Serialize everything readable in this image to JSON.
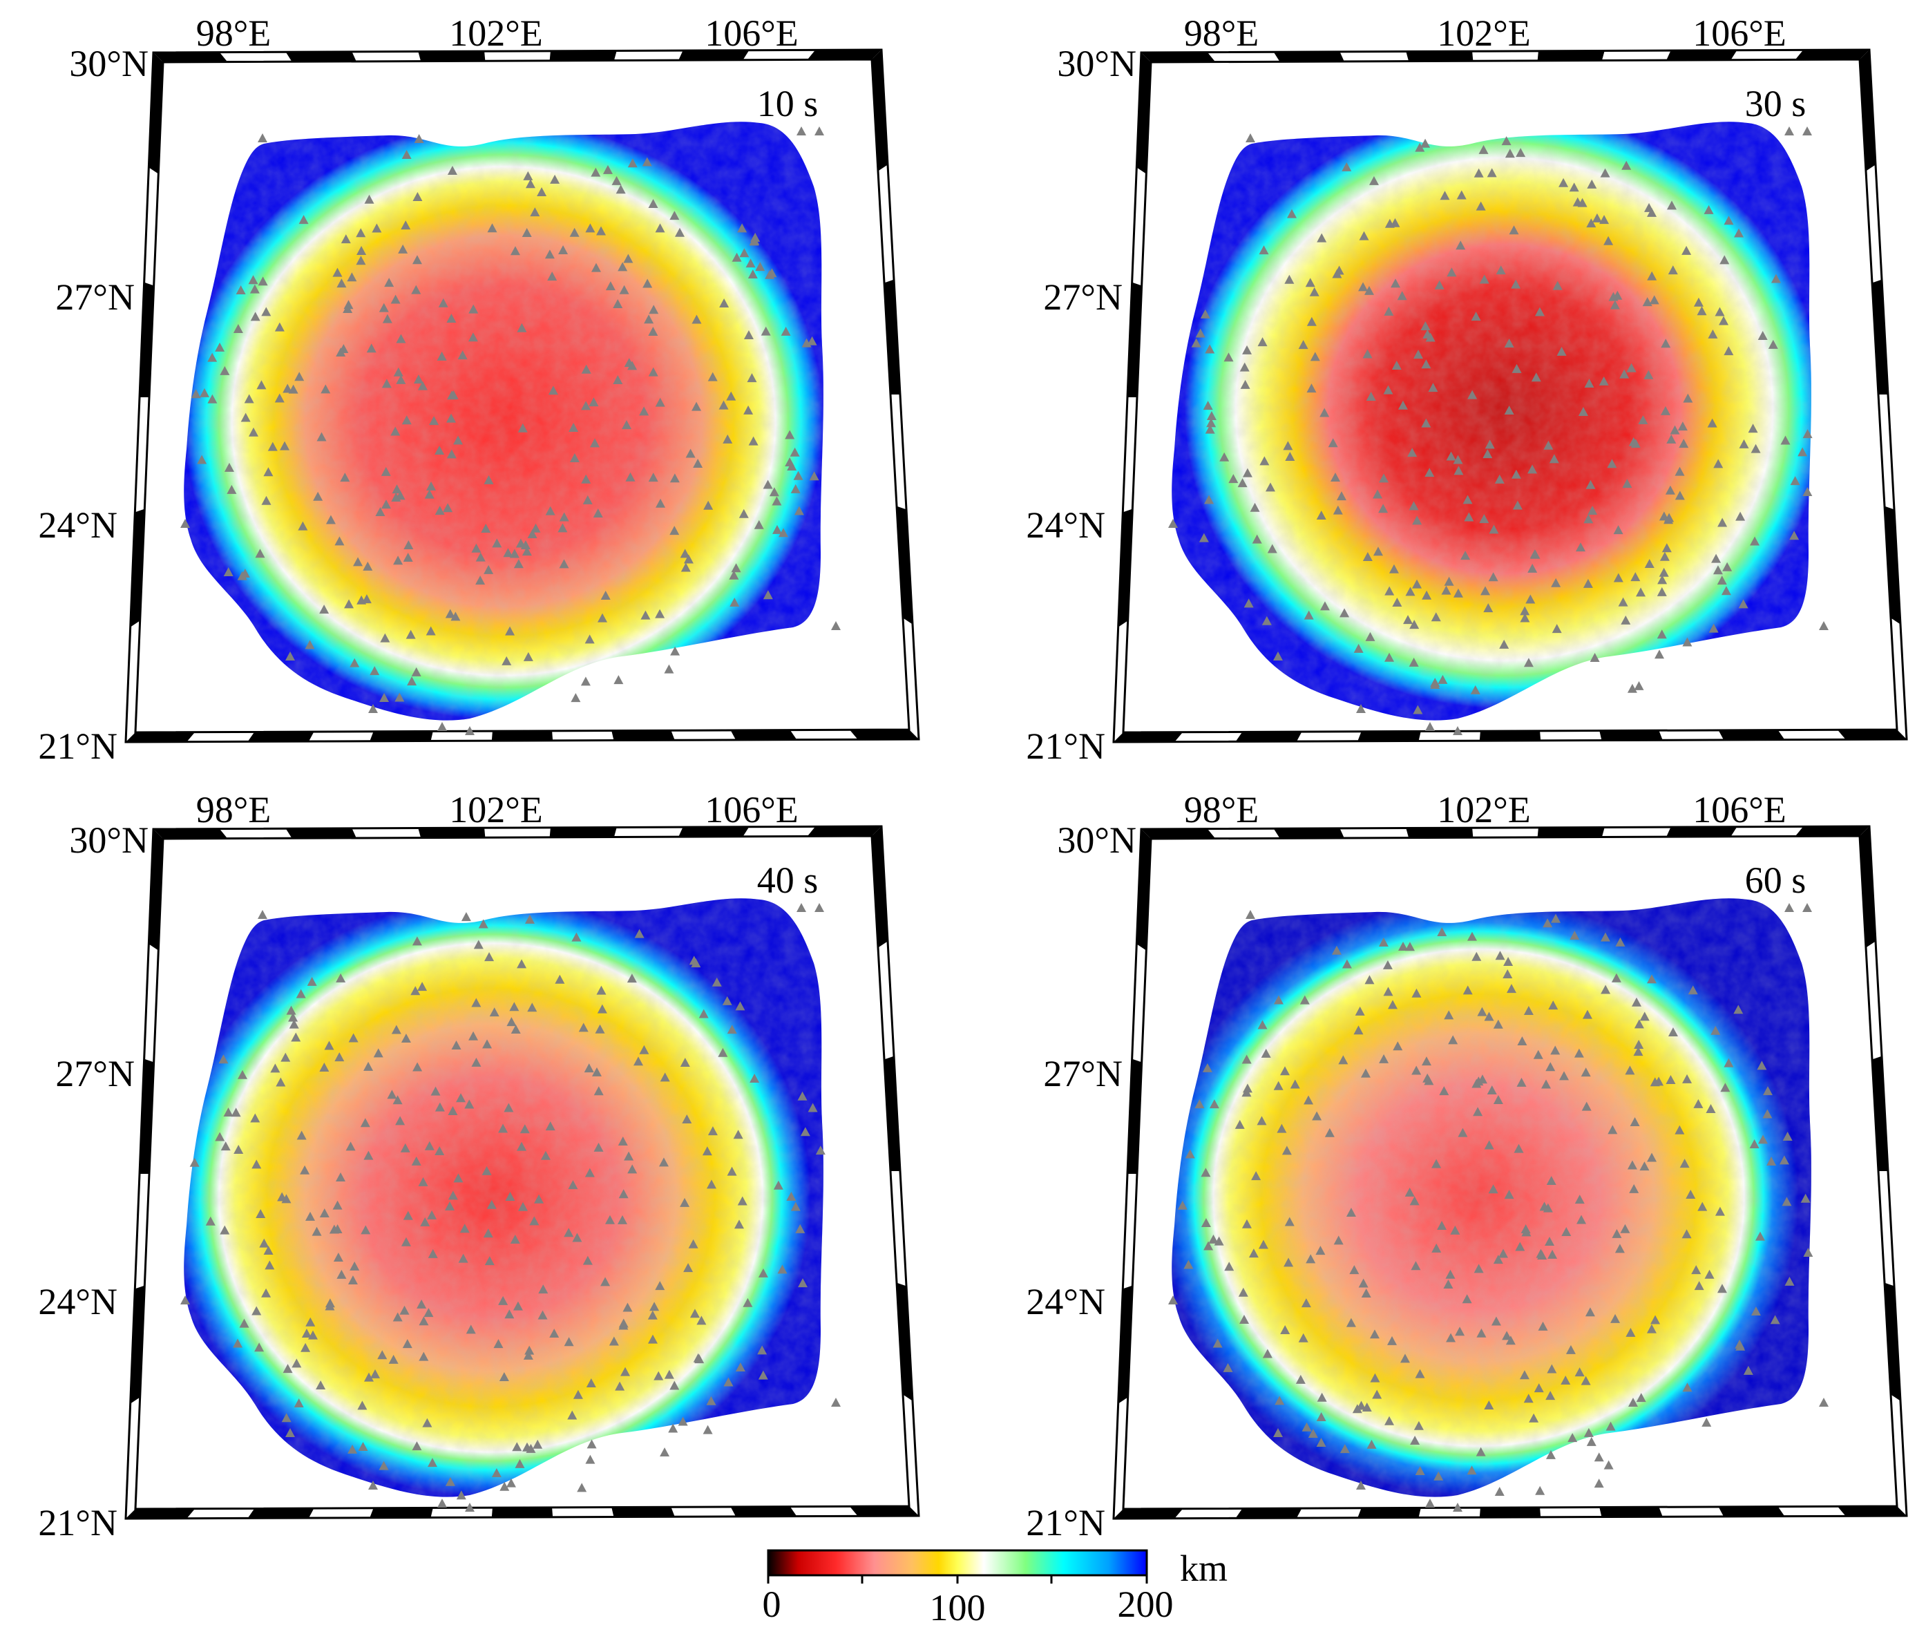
{
  "figure": {
    "panels": [
      {
        "period_label": "10 s",
        "variant": 0
      },
      {
        "period_label": "30 s",
        "variant": 1
      },
      {
        "period_label": "40 s",
        "variant": 2
      },
      {
        "period_label": "60 s",
        "variant": 3
      }
    ],
    "axes": {
      "lon_labels": [
        "98°E",
        "102°E",
        "106°E"
      ],
      "lat_labels": [
        "30°N",
        "27°N",
        "24°N",
        "21°N"
      ]
    },
    "colorbar": {
      "unit": "km",
      "tick_labels": [
        "0",
        "100",
        "200"
      ],
      "range": [
        0,
        200
      ],
      "colors": [
        "#000000",
        "#cc0000",
        "#ff2a2a",
        "#ff8080",
        "#ffaa55",
        "#ffd800",
        "#ffff55",
        "#ffffff",
        "#80ff80",
        "#00ffff",
        "#00a0ff",
        "#0000ff"
      ]
    },
    "station_color": "#808080"
  }
}
